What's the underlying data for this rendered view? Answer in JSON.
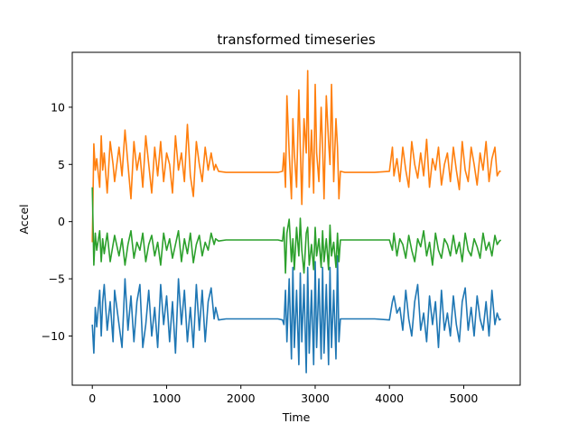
{
  "chart_data": {
    "type": "line",
    "title": "transformed timeseries",
    "xlabel": "Time",
    "ylabel": "Accel",
    "xlim": [
      -270,
      5760
    ],
    "ylim": [
      -14.3,
      14.8
    ],
    "xticks": [
      0,
      1000,
      2000,
      3000,
      4000,
      5000
    ],
    "xtick_labels": [
      "0",
      "1000",
      "2000",
      "3000",
      "4000",
      "5000"
    ],
    "yticks": [
      -10,
      -5,
      0,
      5,
      10
    ],
    "ytick_labels": [
      "−10",
      "−5",
      "0",
      "5",
      "10"
    ],
    "grid": false,
    "legend": "none",
    "series": [
      {
        "color": "#1f77b4",
        "x": [
          0,
          20,
          40,
          60,
          100,
          120,
          140,
          160,
          200,
          240,
          280,
          300,
          360,
          400,
          440,
          480,
          520,
          560,
          600,
          640,
          680,
          720,
          760,
          800,
          840,
          880,
          920,
          960,
          1000,
          1040,
          1080,
          1120,
          1160,
          1200,
          1240,
          1280,
          1320,
          1360,
          1400,
          1440,
          1480,
          1520,
          1560,
          1600,
          1640,
          1660,
          1700,
          1800,
          2000,
          2200,
          2400,
          2500,
          2560,
          2580,
          2600,
          2620,
          2650,
          2680,
          2700,
          2720,
          2750,
          2780,
          2800,
          2820,
          2850,
          2880,
          2900,
          2920,
          2950,
          2980,
          3000,
          3020,
          3050,
          3080,
          3100,
          3120,
          3150,
          3180,
          3200,
          3220,
          3250,
          3280,
          3300,
          3320,
          3340,
          3400,
          3600,
          3800,
          4000,
          4040,
          4060,
          4100,
          4140,
          4180,
          4220,
          4260,
          4300,
          4340,
          4380,
          4420,
          4460,
          4500,
          4540,
          4580,
          4620,
          4660,
          4700,
          4740,
          4780,
          4820,
          4860,
          4900,
          4940,
          4980,
          5020,
          5060,
          5100,
          5140,
          5180,
          5220,
          5260,
          5300,
          5340,
          5380,
          5420,
          5450,
          5480,
          5500
        ],
        "y": [
          -9.0,
          -11.5,
          -7.5,
          -9.2,
          -6.0,
          -10.0,
          -7.0,
          -5.5,
          -9.5,
          -7.0,
          -10.5,
          -6.0,
          -9.0,
          -11.0,
          -5.0,
          -9.5,
          -6.5,
          -10.5,
          -7.0,
          -5.5,
          -11.0,
          -9.0,
          -6.0,
          -10.0,
          -7.5,
          -11.0,
          -5.5,
          -9.0,
          -6.5,
          -10.5,
          -7.0,
          -11.5,
          -5.0,
          -9.0,
          -6.0,
          -10.5,
          -7.5,
          -11.0,
          -5.5,
          -9.5,
          -6.0,
          -10.5,
          -7.0,
          -5.8,
          -8.5,
          -7.5,
          -8.6,
          -8.5,
          -8.5,
          -8.5,
          -8.5,
          -8.5,
          -8.6,
          -9.0,
          -6.0,
          -10.5,
          -5.0,
          -12.0,
          -4.0,
          -11.0,
          -6.0,
          -12.5,
          -4.5,
          -10.5,
          -5.5,
          -13.2,
          -4.0,
          -11.5,
          -6.0,
          -12.5,
          -3.5,
          -11.0,
          -5.0,
          -12.0,
          -4.0,
          -11.5,
          -5.5,
          -12.5,
          -4.0,
          -11.0,
          -6.0,
          -12.0,
          -3.0,
          -10.5,
          -8.5,
          -8.5,
          -8.5,
          -8.5,
          -8.6,
          -7.0,
          -6.5,
          -8.0,
          -7.5,
          -9.5,
          -6.0,
          -8.5,
          -10.0,
          -7.0,
          -5.5,
          -9.5,
          -8.0,
          -10.5,
          -6.5,
          -9.0,
          -7.0,
          -11.0,
          -6.0,
          -9.5,
          -8.0,
          -10.0,
          -6.5,
          -9.0,
          -10.5,
          -7.0,
          -5.8,
          -9.5,
          -7.5,
          -10.0,
          -6.5,
          -8.5,
          -9.5,
          -7.0,
          -10.0,
          -6.0,
          -9.0,
          -8.0,
          -8.6,
          -8.5
        ]
      },
      {
        "color": "#ff7f0e",
        "x": [
          0,
          20,
          40,
          60,
          100,
          120,
          140,
          160,
          200,
          240,
          280,
          300,
          360,
          400,
          440,
          480,
          520,
          560,
          600,
          640,
          680,
          720,
          760,
          800,
          840,
          880,
          920,
          960,
          1000,
          1040,
          1080,
          1120,
          1160,
          1200,
          1240,
          1280,
          1320,
          1360,
          1400,
          1440,
          1480,
          1520,
          1560,
          1600,
          1640,
          1660,
          1700,
          1800,
          2000,
          2200,
          2400,
          2500,
          2560,
          2580,
          2600,
          2620,
          2650,
          2680,
          2700,
          2720,
          2750,
          2780,
          2800,
          2820,
          2850,
          2880,
          2900,
          2920,
          2950,
          2980,
          3000,
          3020,
          3050,
          3080,
          3100,
          3120,
          3150,
          3180,
          3200,
          3220,
          3250,
          3280,
          3300,
          3320,
          3340,
          3400,
          3600,
          3800,
          4000,
          4040,
          4060,
          4100,
          4140,
          4180,
          4220,
          4260,
          4300,
          4340,
          4380,
          4420,
          4460,
          4500,
          4540,
          4580,
          4620,
          4660,
          4700,
          4740,
          4780,
          4820,
          4860,
          4900,
          4940,
          4980,
          5020,
          5060,
          5100,
          5140,
          5180,
          5220,
          5260,
          5300,
          5340,
          5380,
          5420,
          5450,
          5480,
          5500
        ],
        "y": [
          -1.8,
          6.8,
          4.5,
          5.5,
          3.0,
          7.5,
          4.5,
          6.0,
          2.5,
          7.0,
          5.0,
          3.5,
          6.5,
          4.0,
          8.0,
          5.0,
          2.0,
          7.0,
          4.5,
          6.0,
          3.0,
          7.5,
          5.0,
          2.5,
          6.5,
          4.0,
          7.0,
          3.5,
          6.0,
          5.0,
          2.5,
          7.5,
          4.5,
          6.0,
          3.5,
          8.5,
          4.0,
          2.2,
          7.0,
          5.0,
          3.5,
          6.5,
          4.5,
          6.0,
          4.5,
          5.0,
          4.4,
          4.3,
          4.3,
          4.3,
          4.3,
          4.3,
          4.4,
          6.0,
          3.0,
          11.0,
          6.0,
          2.0,
          9.0,
          6.0,
          3.0,
          11.5,
          6.5,
          1.5,
          9.0,
          6.0,
          13.2,
          3.0,
          8.0,
          2.5,
          12.0,
          6.0,
          3.5,
          10.0,
          6.5,
          2.0,
          11.0,
          7.0,
          5.0,
          12.0,
          3.5,
          9.0,
          6.5,
          2.0,
          4.4,
          4.3,
          4.3,
          4.3,
          4.4,
          6.5,
          4.0,
          5.5,
          3.5,
          6.5,
          4.5,
          3.0,
          7.0,
          5.0,
          3.8,
          6.0,
          4.0,
          7.2,
          3.0,
          5.5,
          4.5,
          6.5,
          3.2,
          5.0,
          6.0,
          3.5,
          6.5,
          4.5,
          2.8,
          7.0,
          4.5,
          3.5,
          6.5,
          5.0,
          3.2,
          6.0,
          4.5,
          7.0,
          3.5,
          5.5,
          6.5,
          4.0,
          4.4,
          4.4
        ]
      },
      {
        "color": "#2ca02c",
        "x": [
          0,
          20,
          40,
          60,
          100,
          120,
          140,
          160,
          200,
          240,
          280,
          300,
          360,
          400,
          440,
          480,
          520,
          560,
          600,
          640,
          680,
          720,
          760,
          800,
          840,
          880,
          920,
          960,
          1000,
          1040,
          1080,
          1120,
          1160,
          1200,
          1240,
          1280,
          1320,
          1360,
          1400,
          1440,
          1480,
          1520,
          1560,
          1600,
          1640,
          1660,
          1700,
          1800,
          2000,
          2200,
          2400,
          2500,
          2560,
          2580,
          2600,
          2620,
          2650,
          2680,
          2700,
          2720,
          2750,
          2780,
          2800,
          2820,
          2850,
          2880,
          2900,
          2920,
          2950,
          2980,
          3000,
          3020,
          3050,
          3080,
          3100,
          3120,
          3150,
          3180,
          3200,
          3220,
          3250,
          3280,
          3300,
          3320,
          3340,
          3400,
          3600,
          3800,
          4000,
          4040,
          4060,
          4100,
          4140,
          4180,
          4220,
          4260,
          4300,
          4340,
          4380,
          4420,
          4460,
          4500,
          4540,
          4580,
          4620,
          4660,
          4700,
          4740,
          4780,
          4820,
          4860,
          4900,
          4940,
          4980,
          5020,
          5060,
          5100,
          5140,
          5180,
          5220,
          5260,
          5300,
          5340,
          5380,
          5420,
          5450,
          5480,
          5500
        ],
        "y": [
          3.0,
          -3.8,
          -1.0,
          -2.5,
          -0.8,
          -3.5,
          -1.5,
          -2.8,
          -1.0,
          -3.5,
          -2.0,
          -1.2,
          -3.0,
          -1.5,
          -3.8,
          -2.0,
          -0.8,
          -3.2,
          -1.8,
          -2.5,
          -1.0,
          -3.5,
          -2.0,
          -1.2,
          -3.0,
          -1.8,
          -3.8,
          -1.0,
          -2.5,
          -1.5,
          -3.2,
          -2.0,
          -0.8,
          -3.5,
          -1.5,
          -2.8,
          -1.0,
          -3.6,
          -2.0,
          -1.2,
          -3.0,
          -1.8,
          -2.5,
          -1.0,
          -2.0,
          -1.5,
          -1.7,
          -1.6,
          -1.6,
          -1.6,
          -1.6,
          -1.6,
          -1.7,
          -0.5,
          -4.5,
          -1.0,
          0.2,
          -3.5,
          -1.5,
          -4.2,
          -0.5,
          -3.0,
          0.3,
          -2.5,
          -4.5,
          -1.0,
          -0.5,
          -3.8,
          -2.0,
          -4.2,
          -0.5,
          -3.0,
          -1.5,
          -4.0,
          -0.8,
          -3.5,
          -1.5,
          -4.2,
          -0.3,
          -3.0,
          -1.8,
          -4.0,
          -1.0,
          -3.5,
          -1.6,
          -1.6,
          -1.6,
          -1.6,
          -1.6,
          -2.5,
          -1.0,
          -3.0,
          -1.5,
          -2.0,
          -3.2,
          -1.2,
          -2.5,
          -3.5,
          -1.5,
          -2.2,
          -0.8,
          -3.0,
          -1.8,
          -3.8,
          -1.0,
          -2.5,
          -3.2,
          -1.5,
          -2.0,
          -3.0,
          -1.2,
          -2.8,
          -1.8,
          -3.5,
          -1.0,
          -2.5,
          -3.0,
          -1.5,
          -2.2,
          -3.2,
          -1.0,
          -2.5,
          -1.8,
          -3.0,
          -1.2,
          -2.0,
          -1.7,
          -1.6
        ]
      }
    ]
  }
}
